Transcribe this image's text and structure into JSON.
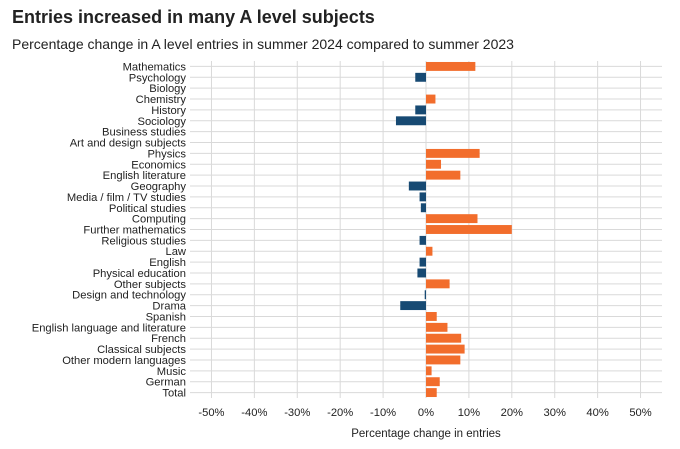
{
  "title": "Entries increased in many A level subjects",
  "subtitle": "Percentage change in A level entries in summer 2024 compared to summer 2023",
  "colors": {
    "positive": "#f26d2c",
    "negative": "#174a73",
    "grid": "#d9d9d9"
  },
  "chart_data": {
    "type": "bar",
    "orientation": "horizontal",
    "xlabel": "Percentage change in entries",
    "ylabel": "",
    "xlim": [
      -55,
      55
    ],
    "ticks": [
      -50,
      -40,
      -30,
      -20,
      -10,
      0,
      10,
      20,
      30,
      40,
      50
    ],
    "tick_labels": [
      "-50%",
      "-40%",
      "-30%",
      "-20%",
      "-10%",
      "0%",
      "10%",
      "20%",
      "30%",
      "40%",
      "50%"
    ],
    "grid": true,
    "categories": [
      "Mathematics",
      "Psychology",
      "Biology",
      "Chemistry",
      "History",
      "Sociology",
      "Business studies",
      "Art and design subjects",
      "Physics",
      "Economics",
      "English literature",
      "Geography",
      "Media / film / TV studies",
      "Political studies",
      "Computing",
      "Further mathematics",
      "Religious studies",
      "Law",
      "English",
      "Physical education",
      "Other subjects",
      "Design and technology",
      "Drama",
      "Spanish",
      "English language and literature",
      "French",
      "Classical subjects",
      "Other modern languages",
      "Music",
      "German",
      "Total"
    ],
    "values": [
      11.5,
      -2.5,
      0,
      2.2,
      -2.5,
      -7,
      0,
      0,
      12.5,
      3.5,
      8,
      -4,
      -1.5,
      -1.2,
      12,
      20,
      -1.5,
      1.5,
      -1.5,
      -2,
      5.5,
      -0.3,
      -6,
      2.5,
      5,
      8.2,
      9,
      8,
      1.3,
      3.2,
      2.5
    ]
  }
}
